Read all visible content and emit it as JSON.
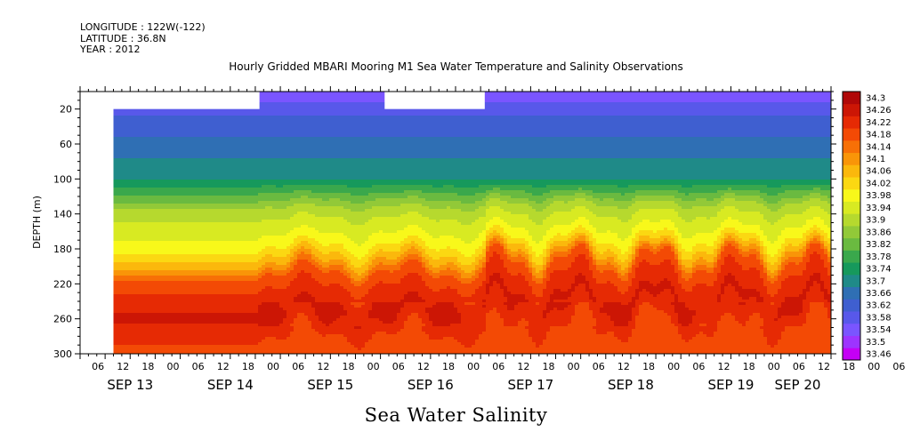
{
  "header": {
    "longitude": "LONGITUDE : 122W(-122)",
    "latitude": "LATITUDE : 36.8N",
    "year": "YEAR : 2012"
  },
  "chart_data": {
    "type": "heatmap",
    "title": "Hourly Gridded MBARI Mooring M1 Sea Water Temperature and Salinity Observations",
    "xlabel": "Sea Water Salinity",
    "ylabel": "DEPTH (m)",
    "ylim": [
      300,
      0
    ],
    "y_ticks": [
      20,
      60,
      100,
      140,
      180,
      220,
      260,
      300
    ],
    "x_hour_ticks": [
      "06",
      "12",
      "18",
      "00",
      "06",
      "12",
      "18",
      "00",
      "06",
      "12",
      "18",
      "00",
      "06",
      "12",
      "18",
      "00",
      "06",
      "12",
      "18",
      "00",
      "06",
      "12",
      "18",
      "00",
      "06",
      "12",
      "18",
      "00",
      "06",
      "12",
      "18",
      "00",
      "06"
    ],
    "x_day_labels": [
      {
        "label": "SEP 13",
        "hour": 12
      },
      {
        "label": "SEP 14",
        "hour": 36
      },
      {
        "label": "SEP 15",
        "hour": 60
      },
      {
        "label": "SEP 16",
        "hour": 84
      },
      {
        "label": "SEP 17",
        "hour": 108
      },
      {
        "label": "SEP 18",
        "hour": 132
      },
      {
        "label": "SEP 19",
        "hour": 156
      },
      {
        "label": "SEP 20",
        "hour": 172
      }
    ],
    "x_range_hours": [
      0,
      180
    ],
    "data_start_hour": 8,
    "no_data_windows": [
      {
        "from_hour": 0,
        "to_hour": 8,
        "min_depth": 0,
        "max_depth": 300
      },
      {
        "from_hour": 8,
        "to_hour": 43,
        "min_depth": 0,
        "max_depth": 20
      },
      {
        "from_hour": 73,
        "to_hour": 97,
        "min_depth": 0,
        "max_depth": 20
      }
    ],
    "colorbar": {
      "levels": [
        33.46,
        33.5,
        33.54,
        33.58,
        33.62,
        33.66,
        33.7,
        33.74,
        33.78,
        33.82,
        33.86,
        33.9,
        33.94,
        33.98,
        34.02,
        34.06,
        34.1,
        34.14,
        34.18,
        34.22,
        34.26,
        34.3
      ],
      "colors": [
        "#c400f5",
        "#9d34ff",
        "#7a55ff",
        "#5858ea",
        "#3f5fd0",
        "#2f6fb4",
        "#1f8a88",
        "#16995c",
        "#3aa84c",
        "#6aba40",
        "#92c938",
        "#b6d92e",
        "#d8ea22",
        "#f8f81a",
        "#fbd812",
        "#fbb80c",
        "#f99508",
        "#f77006",
        "#f34a05",
        "#e62a04",
        "#cc1605",
        "#b00808"
      ]
    },
    "depth_profile": [
      {
        "depth": 5,
        "salinity": 33.55
      },
      {
        "depth": 20,
        "salinity": 33.61
      },
      {
        "depth": 60,
        "salinity": 33.67
      },
      {
        "depth": 100,
        "salinity": 33.74
      },
      {
        "depth": 140,
        "salinity": 33.92
      },
      {
        "depth": 180,
        "salinity": 34.0
      },
      {
        "depth": 200,
        "salinity": 34.08
      },
      {
        "depth": 220,
        "salinity": 34.2
      },
      {
        "depth": 260,
        "salinity": 34.27
      },
      {
        "depth": 300,
        "salinity": 34.2
      }
    ]
  }
}
